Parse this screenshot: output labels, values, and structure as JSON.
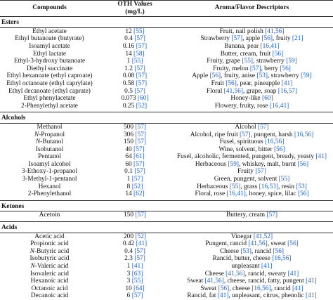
{
  "header": {
    "compounds": "Compounds",
    "oth_line1": "OTH Values",
    "oth_line2": "(mg/L)",
    "descriptors": "Aroma/Flavor Descriptors"
  },
  "sections": [
    {
      "title": "Esters",
      "rows": [
        {
          "name": "Ethyl acetate",
          "val": "12",
          "vref": "[55]",
          "desc": [
            {
              "t": "Fruit, nail polish "
            },
            {
              "r": "[41,56]"
            }
          ]
        },
        {
          "name": "Ethyl butanoate (butyrate)",
          "val": "0.4",
          "vref": "[57]",
          "desc": [
            {
              "t": "Strawberry "
            },
            {
              "r": "[57]"
            },
            {
              "t": ", apple "
            },
            {
              "r": "[56]"
            },
            {
              "t": ", fruity "
            },
            {
              "r": "[21]"
            }
          ]
        },
        {
          "name": "Isoamyl acetate",
          "val": "0.16",
          "vref": "[57]",
          "desc": [
            {
              "t": "Banana, pear "
            },
            {
              "r": "[16,41]"
            }
          ]
        },
        {
          "name": "Ethyl lactate",
          "val": "14",
          "vref": "[58]",
          "desc": [
            {
              "t": "Butter, cream, fruit "
            },
            {
              "r": "[56]"
            }
          ]
        },
        {
          "name": "Ethyl-3-hydroxy butanoate",
          "val": "1",
          "vref": "[55]",
          "desc": [
            {
              "t": "Fruity, grape "
            },
            {
              "r": "[55]"
            },
            {
              "t": ", strawberry "
            },
            {
              "r": "[59]"
            }
          ]
        },
        {
          "name": "Diethyl succinate",
          "val": "1.2",
          "vref": "[57]",
          "desc": [
            {
              "t": "Fruity, melon "
            },
            {
              "r": "[57]"
            },
            {
              "t": ", berry "
            },
            {
              "r": "[56]"
            }
          ]
        },
        {
          "name": "Ethyl hexanoate (ethyl caproate)",
          "val": "0.08",
          "vref": "[57]",
          "desc": [
            {
              "t": "Apple "
            },
            {
              "r": "[56]"
            },
            {
              "t": ", fruity, anise "
            },
            {
              "r": "[53]"
            },
            {
              "t": ", strawberry "
            },
            {
              "r": "[59]"
            }
          ]
        },
        {
          "name": "Ethyl octanoate (ethyl caprylate)",
          "val": "0.58",
          "vref": "[57]",
          "desc": [
            {
              "t": "Fruit "
            },
            {
              "r": "[56]"
            },
            {
              "t": ", pear, pineapple "
            },
            {
              "r": "[41]"
            }
          ]
        },
        {
          "name": "Ethyl decanoate (ethyl caprate)",
          "val": "0.5",
          "vref": "[57]",
          "desc": [
            {
              "t": "Floral "
            },
            {
              "r": "[41,56]"
            },
            {
              "t": ", grape, soap "
            },
            {
              "r": "[16,57]"
            }
          ]
        },
        {
          "name": "Ethyl phenylacetate",
          "val": "0.073",
          "vref": "[60]",
          "desc": [
            {
              "t": "Honey-like "
            },
            {
              "r": "[60]"
            }
          ]
        },
        {
          "name": "2-Phenylethyl acetate",
          "val": "0.25",
          "vref": "[52]",
          "desc": [
            {
              "t": "Flowery, fruity, rose "
            },
            {
              "r": "[16,41]"
            }
          ]
        }
      ]
    },
    {
      "title": "Alcohols",
      "rows": [
        {
          "name": "Methanol",
          "val": "500",
          "vref": "[57]",
          "desc": [
            {
              "t": "Alcohol "
            },
            {
              "r": "[57]"
            }
          ]
        },
        {
          "name": "N-Propanol",
          "val": "306",
          "vref": "[57]",
          "desc": [
            {
              "t": "Alcohol, ripe fruit "
            },
            {
              "r": "[57]"
            },
            {
              "t": ", pungent, harsh "
            },
            {
              "r": "[16,56]"
            }
          ]
        },
        {
          "name": "N-Butanol",
          "val": "150",
          "vref": "[57]",
          "desc": [
            {
              "t": "Fusel, spirituous "
            },
            {
              "r": "[16,56]"
            }
          ]
        },
        {
          "name": "Isobutanol",
          "val": "40",
          "vref": "[57]",
          "desc": [
            {
              "t": "Wine, solvent, bitter "
            },
            {
              "r": "[56]"
            }
          ]
        },
        {
          "name": "Pentanol",
          "val": "64",
          "vref": "[61]",
          "desc": [
            {
              "t": "Fusel, alcoholic, fermented, pungent, bready, yeasty "
            },
            {
              "r": "[41]"
            }
          ]
        },
        {
          "name": "Isoamyl alcohol",
          "val": "60",
          "vref": "[57]",
          "desc": [
            {
              "t": "Herbaceous "
            },
            {
              "r": "[59]"
            },
            {
              "t": ", whiskey, malt, burnt "
            },
            {
              "r": "[56]"
            }
          ]
        },
        {
          "name": "3-Ethoxy-1-propanol",
          "val": "0.1",
          "vref": "[57]",
          "desc": [
            {
              "t": "Fruity "
            },
            {
              "r": "[57]"
            }
          ]
        },
        {
          "name": "3-Methyl-1-pentanol",
          "val": "1",
          "vref": "[57]",
          "desc": [
            {
              "t": "Green, pungent, solvent "
            },
            {
              "r": "[55]"
            }
          ]
        },
        {
          "name": "Hexanol",
          "val": "8",
          "vref": "[52]",
          "desc": [
            {
              "t": "Herbaceous "
            },
            {
              "r": "[55]"
            },
            {
              "t": ", grass "
            },
            {
              "r": "[16,53]"
            },
            {
              "t": ", resin "
            },
            {
              "r": "[53]"
            }
          ]
        },
        {
          "name": "2-Phenylethanol",
          "val": "14",
          "vref": "[62]",
          "desc": [
            {
              "t": "Floral, rose "
            },
            {
              "r": "[16,41]"
            },
            {
              "t": ", honey, spice, lilac "
            },
            {
              "r": "[56]"
            }
          ]
        }
      ]
    },
    {
      "title": "Ketones",
      "rows": [
        {
          "name": "Acetoin",
          "val": "150",
          "vref": "[57]",
          "desc": [
            {
              "t": "Buttery, cream "
            },
            {
              "r": "[57]"
            }
          ]
        }
      ]
    },
    {
      "title": "Acids",
      "rows": [
        {
          "name": "Acetic acid",
          "val": "200",
          "vref": "[52]",
          "desc": [
            {
              "t": "Vinegar "
            },
            {
              "r": "[41,52]"
            }
          ]
        },
        {
          "name": "Propionic acid",
          "val": "0.42",
          "vref": "[41]",
          "desc": [
            {
              "t": "Pungent, rancid "
            },
            {
              "r": "[41,56]"
            },
            {
              "t": ", sweat "
            },
            {
              "r": "[56]"
            }
          ]
        },
        {
          "name": "N-Butyric acid",
          "val": "0.4",
          "vref": "[57]",
          "desc": [
            {
              "t": "Cheese "
            },
            {
              "r": "[53]"
            },
            {
              "t": ", rancid "
            },
            {
              "r": "[56]"
            }
          ]
        },
        {
          "name": "Isobutyric acid",
          "val": "2.3",
          "vref": "[57]",
          "desc": [
            {
              "t": "Rancid, butter, cheese "
            },
            {
              "r": "[16,56]"
            }
          ]
        },
        {
          "name": "N-Valeric acid",
          "val": "1",
          "vref": "[41]",
          "desc": [
            {
              "t": "unpleasant "
            },
            {
              "r": "[41]"
            }
          ]
        },
        {
          "name": "Isovaleric acid",
          "val": "3",
          "vref": "[63]",
          "desc": [
            {
              "t": "Cheese "
            },
            {
              "r": "[41,56]"
            },
            {
              "t": ", rancid, sweaty "
            },
            {
              "r": "[41]"
            }
          ]
        },
        {
          "name": "Hexanoic acid",
          "val": "3",
          "vref": "[55]",
          "desc": [
            {
              "t": "Sweat "
            },
            {
              "r": "[41,56]"
            },
            {
              "t": ", cheese, rancid, fatty, pungent "
            },
            {
              "r": "[41]"
            }
          ]
        },
        {
          "name": "Octanoic acid",
          "val": "10",
          "vref": "[64]",
          "desc": [
            {
              "t": "Sweat "
            },
            {
              "r": "[56]"
            },
            {
              "t": ", cheese "
            },
            {
              "r": "[16,56]"
            },
            {
              "t": ", rancid "
            },
            {
              "r": "[41]"
            }
          ]
        },
        {
          "name": "Decanoic acid",
          "val": "6",
          "vref": "[57]",
          "desc": [
            {
              "t": "Rancid, fat "
            },
            {
              "r": "[41]"
            },
            {
              "t": ", unpleasant, citrus, phenolic "
            },
            {
              "r": "[41]"
            }
          ]
        }
      ]
    }
  ]
}
